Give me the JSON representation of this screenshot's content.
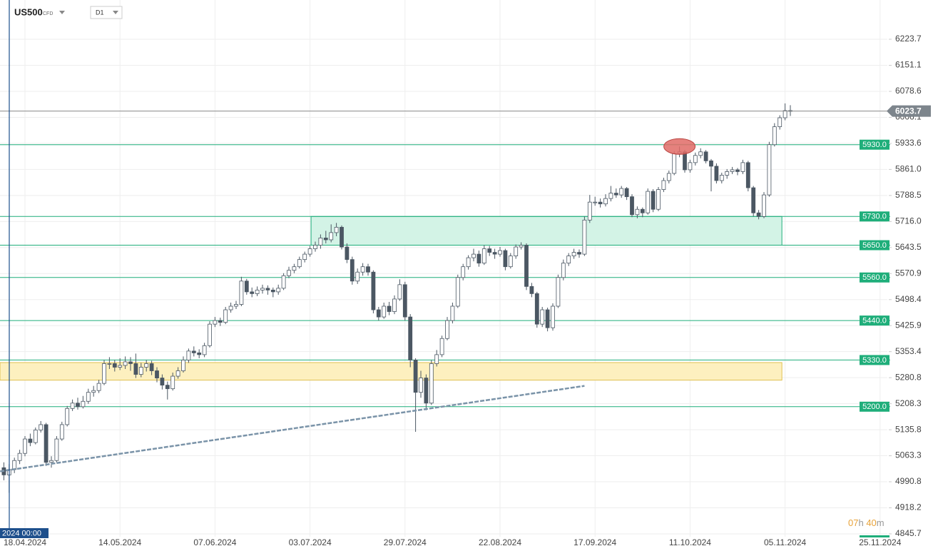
{
  "chart_data": {
    "type": "candlestick",
    "title": "US500",
    "subtitle": "CFD",
    "interval": "D1",
    "cursor_label": "2024 00:00",
    "timer": {
      "hours": "07",
      "h": "h",
      "minutes": "40",
      "m": "m"
    },
    "last_price": 6023.7,
    "ylim": [
      4821.8,
      6333.1
    ],
    "yticks": [
      6223.7,
      6151.1,
      6078.6,
      6006.1,
      5933.6,
      {
        "value": 5861.0,
        "label": "5861.0"
      },
      5788.5,
      {
        "value": 5716.0,
        "label": "5716.0"
      },
      5643.5,
      5570.9,
      5498.4,
      5425.9,
      5353.4,
      5280.8,
      5208.3,
      5135.8,
      5063.3,
      4990.8,
      4918.2,
      4845.7
    ],
    "grid": true,
    "up_color": "#ffffff",
    "down_color": "#4b5763",
    "categories": [
      null,
      null,
      null,
      null,
      "18.04.2024",
      null,
      null,
      null,
      null,
      null,
      null,
      null,
      null,
      null,
      null,
      null,
      null,
      null,
      null,
      null,
      null,
      null,
      "14.05.2024",
      null,
      null,
      null,
      null,
      null,
      null,
      null,
      null,
      null,
      null,
      null,
      null,
      null,
      null,
      null,
      null,
      null,
      "07.06.2024",
      null,
      null,
      null,
      null,
      null,
      null,
      null,
      null,
      null,
      null,
      null,
      null,
      null,
      null,
      null,
      null,
      null,
      "03.07.2024",
      null,
      null,
      null,
      null,
      null,
      null,
      null,
      null,
      null,
      null,
      null,
      null,
      null,
      null,
      null,
      null,
      null,
      "29.07.2024",
      null,
      null,
      null,
      null,
      null,
      null,
      null,
      null,
      null,
      null,
      null,
      null,
      null,
      null,
      null,
      null,
      null,
      "22.08.2024",
      null,
      null,
      null,
      null,
      null,
      null,
      null,
      null,
      null,
      null,
      null,
      null,
      null,
      null,
      null,
      null,
      null,
      "17.09.2024",
      null,
      null,
      null,
      null,
      null,
      null,
      null,
      null,
      null,
      null,
      null,
      null,
      null,
      null,
      null,
      null,
      null,
      "11.10.2024",
      null,
      null,
      null,
      null,
      null,
      null,
      null,
      null,
      null,
      null,
      null,
      null,
      null,
      null,
      null,
      null,
      null,
      "05.11.2024",
      null,
      null,
      null,
      null,
      null,
      null,
      null,
      null,
      null,
      null,
      null,
      null,
      null,
      null,
      null,
      null,
      null,
      "25.11.2024",
      null
    ],
    "ohlc": [
      [
        5030,
        5045,
        4995,
        5010
      ],
      [
        5010,
        5040,
        4960,
        5025
      ],
      [
        5025,
        5058,
        5015,
        5050
      ],
      [
        5050,
        5080,
        5040,
        5070
      ],
      [
        5070,
        5118,
        5062,
        5110
      ],
      [
        5110,
        5125,
        5090,
        5100
      ],
      [
        5100,
        5142,
        5095,
        5135
      ],
      [
        5135,
        5160,
        5128,
        5150
      ],
      [
        5150,
        5155,
        5035,
        5045
      ],
      [
        5045,
        5062,
        5030,
        5050
      ],
      [
        5050,
        5118,
        5045,
        5110
      ],
      [
        5110,
        5158,
        5105,
        5150
      ],
      [
        5150,
        5202,
        5145,
        5195
      ],
      [
        5195,
        5220,
        5188,
        5210
      ],
      [
        5210,
        5225,
        5192,
        5200
      ],
      [
        5200,
        5230,
        5195,
        5215
      ],
      [
        5215,
        5250,
        5208,
        5240
      ],
      [
        5240,
        5258,
        5228,
        5245
      ],
      [
        5245,
        5275,
        5238,
        5265
      ],
      [
        5265,
        5330,
        5260,
        5320
      ],
      [
        5320,
        5338,
        5305,
        5320
      ],
      [
        5320,
        5330,
        5298,
        5310
      ],
      [
        5310,
        5335,
        5302,
        5315
      ],
      [
        5315,
        5340,
        5305,
        5325
      ],
      [
        5325,
        5338,
        5300,
        5320
      ],
      [
        5320,
        5348,
        5280,
        5290
      ],
      [
        5290,
        5322,
        5282,
        5310
      ],
      [
        5310,
        5330,
        5298,
        5320
      ],
      [
        5320,
        5328,
        5288,
        5300
      ],
      [
        5300,
        5310,
        5268,
        5280
      ],
      [
        5280,
        5290,
        5248,
        5260
      ],
      [
        5260,
        5270,
        5220,
        5250
      ],
      [
        5250,
        5295,
        5245,
        5285
      ],
      [
        5285,
        5310,
        5278,
        5300
      ],
      [
        5300,
        5340,
        5295,
        5330
      ],
      [
        5330,
        5362,
        5322,
        5355
      ],
      [
        5355,
        5368,
        5340,
        5350
      ],
      [
        5350,
        5360,
        5335,
        5345
      ],
      [
        5345,
        5378,
        5338,
        5370
      ],
      [
        5370,
        5438,
        5365,
        5430
      ],
      [
        5430,
        5450,
        5422,
        5440
      ],
      [
        5440,
        5448,
        5425,
        5435
      ],
      [
        5435,
        5478,
        5430,
        5470
      ],
      [
        5470,
        5490,
        5462,
        5480
      ],
      [
        5480,
        5495,
        5472,
        5485
      ],
      [
        5485,
        5562,
        5480,
        5550
      ],
      [
        5550,
        5556,
        5512,
        5520
      ],
      [
        5520,
        5532,
        5505,
        5515
      ],
      [
        5515,
        5535,
        5508,
        5525
      ],
      [
        5525,
        5540,
        5515,
        5530
      ],
      [
        5530,
        5538,
        5512,
        5525
      ],
      [
        5525,
        5532,
        5505,
        5520
      ],
      [
        5520,
        5540,
        5512,
        5530
      ],
      [
        5530,
        5572,
        5525,
        5565
      ],
      [
        5565,
        5590,
        5558,
        5580
      ],
      [
        5580,
        5598,
        5572,
        5590
      ],
      [
        5590,
        5618,
        5585,
        5610
      ],
      [
        5610,
        5632,
        5602,
        5625
      ],
      [
        5625,
        5648,
        5618,
        5640
      ],
      [
        5640,
        5660,
        5632,
        5650
      ],
      [
        5650,
        5680,
        5640,
        5670
      ],
      [
        5670,
        5690,
        5655,
        5665
      ],
      [
        5665,
        5708,
        5658,
        5685
      ],
      [
        5685,
        5712,
        5675,
        5700
      ],
      [
        5700,
        5705,
        5638,
        5645
      ],
      [
        5645,
        5655,
        5600,
        5610
      ],
      [
        5610,
        5618,
        5540,
        5550
      ],
      [
        5550,
        5585,
        5542,
        5575
      ],
      [
        5575,
        5600,
        5565,
        5590
      ],
      [
        5590,
        5598,
        5565,
        5575
      ],
      [
        5575,
        5580,
        5460,
        5470
      ],
      [
        5470,
        5478,
        5440,
        5450
      ],
      [
        5450,
        5490,
        5445,
        5480
      ],
      [
        5480,
        5492,
        5455,
        5465
      ],
      [
        5465,
        5510,
        5458,
        5500
      ],
      [
        5500,
        5555,
        5495,
        5540
      ],
      [
        5540,
        5548,
        5440,
        5450
      ],
      [
        5450,
        5458,
        5310,
        5330
      ],
      [
        5330,
        5335,
        5130,
        5240
      ],
      [
        5240,
        5300,
        5225,
        5280
      ],
      [
        5280,
        5290,
        5190,
        5210
      ],
      [
        5210,
        5330,
        5205,
        5320
      ],
      [
        5320,
        5358,
        5312,
        5345
      ],
      [
        5345,
        5398,
        5338,
        5390
      ],
      [
        5390,
        5450,
        5385,
        5440
      ],
      [
        5440,
        5490,
        5432,
        5480
      ],
      [
        5480,
        5568,
        5475,
        5560
      ],
      [
        5560,
        5598,
        5552,
        5590
      ],
      [
        5590,
        5622,
        5582,
        5615
      ],
      [
        5615,
        5640,
        5605,
        5625
      ],
      [
        5625,
        5635,
        5590,
        5600
      ],
      [
        5600,
        5650,
        5595,
        5640
      ],
      [
        5640,
        5648,
        5620,
        5630
      ],
      [
        5630,
        5640,
        5612,
        5625
      ],
      [
        5625,
        5645,
        5618,
        5635
      ],
      [
        5635,
        5640,
        5580,
        5590
      ],
      [
        5590,
        5628,
        5585,
        5620
      ],
      [
        5620,
        5652,
        5612,
        5645
      ],
      [
        5645,
        5658,
        5638,
        5650
      ],
      [
        5650,
        5655,
        5525,
        5535
      ],
      [
        5535,
        5545,
        5505,
        5515
      ],
      [
        5515,
        5520,
        5420,
        5430
      ],
      [
        5430,
        5478,
        5422,
        5470
      ],
      [
        5470,
        5476,
        5410,
        5420
      ],
      [
        5420,
        5488,
        5412,
        5480
      ],
      [
        5480,
        5568,
        5475,
        5560
      ],
      [
        5560,
        5610,
        5552,
        5600
      ],
      [
        5600,
        5628,
        5592,
        5620
      ],
      [
        5620,
        5640,
        5612,
        5630
      ],
      [
        5630,
        5638,
        5615,
        5625
      ],
      [
        5625,
        5730,
        5620,
        5720
      ],
      [
        5720,
        5790,
        5712,
        5770
      ],
      [
        5770,
        5785,
        5760,
        5770
      ],
      [
        5770,
        5780,
        5755,
        5765
      ],
      [
        5765,
        5792,
        5758,
        5780
      ],
      [
        5780,
        5815,
        5772,
        5795
      ],
      [
        5795,
        5808,
        5782,
        5790
      ],
      [
        5790,
        5815,
        5782,
        5808
      ],
      [
        5808,
        5812,
        5776,
        5785
      ],
      [
        5785,
        5792,
        5728,
        5735
      ],
      [
        5735,
        5758,
        5725,
        5750
      ],
      [
        5750,
        5755,
        5728,
        5740
      ],
      [
        5740,
        5808,
        5735,
        5800
      ],
      [
        5800,
        5806,
        5742,
        5750
      ],
      [
        5750,
        5812,
        5745,
        5805
      ],
      [
        5805,
        5838,
        5798,
        5830
      ],
      [
        5830,
        5858,
        5822,
        5850
      ],
      [
        5850,
        5912,
        5845,
        5905
      ],
      [
        5905,
        5925,
        5895,
        5910
      ],
      [
        5910,
        5915,
        5852,
        5860
      ],
      [
        5860,
        5888,
        5852,
        5880
      ],
      [
        5880,
        5908,
        5872,
        5900
      ],
      [
        5900,
        5920,
        5892,
        5910
      ],
      [
        5910,
        5915,
        5878,
        5885
      ],
      [
        5885,
        5890,
        5800,
        5870
      ],
      [
        5870,
        5878,
        5822,
        5830
      ],
      [
        5830,
        5852,
        5822,
        5845
      ],
      [
        5845,
        5862,
        5835,
        5855
      ],
      [
        5855,
        5868,
        5848,
        5860
      ],
      [
        5860,
        5865,
        5845,
        5855
      ],
      [
        5855,
        5888,
        5848,
        5880
      ],
      [
        5880,
        5885,
        5800,
        5810
      ],
      [
        5810,
        5815,
        5730,
        5740
      ],
      [
        5740,
        5748,
        5722,
        5730
      ],
      [
        5730,
        5798,
        5725,
        5790
      ],
      [
        5790,
        5938,
        5785,
        5930
      ],
      [
        5930,
        5990,
        5925,
        5980
      ],
      [
        5980,
        6012,
        5972,
        6005
      ],
      [
        6005,
        6045,
        5998,
        6025
      ],
      [
        6025,
        6040,
        6010,
        6023.7
      ],
      null,
      null,
      null,
      null,
      null,
      null,
      null,
      null,
      null,
      null,
      null,
      null,
      null,
      null,
      null,
      null,
      null,
      null
    ],
    "levels": [
      {
        "value": 5930,
        "label": "5930.0"
      },
      {
        "value": 5730,
        "label": "5730.0"
      },
      {
        "value": 5650,
        "label": "5650.0"
      },
      {
        "value": 5560,
        "label": "5560.0"
      },
      {
        "value": 5440,
        "label": "5440.0"
      },
      {
        "value": 5330,
        "label": "5330.0"
      },
      {
        "value": 5200,
        "label": "5200.0"
      }
    ],
    "level_color": "#1fae7a",
    "zones": [
      {
        "low": 5650,
        "high": 5730,
        "start": 58.2,
        "end": 147.4,
        "color": "#d3f3e6",
        "border": "#1fae7a"
      },
      {
        "low": 5274,
        "high": 5323,
        "start": -0.8,
        "end": 147.4,
        "color": "#fdf0bf",
        "border": "#e0c050"
      }
    ],
    "trendline": {
      "points": [
        {
          "i": -0.7,
          "v": 5020
        },
        {
          "i": 110,
          "v": 5258
        }
      ],
      "color": "#7a93a8"
    },
    "marker": {
      "i": 128,
      "v": 5925,
      "color": "#e06b66"
    }
  }
}
